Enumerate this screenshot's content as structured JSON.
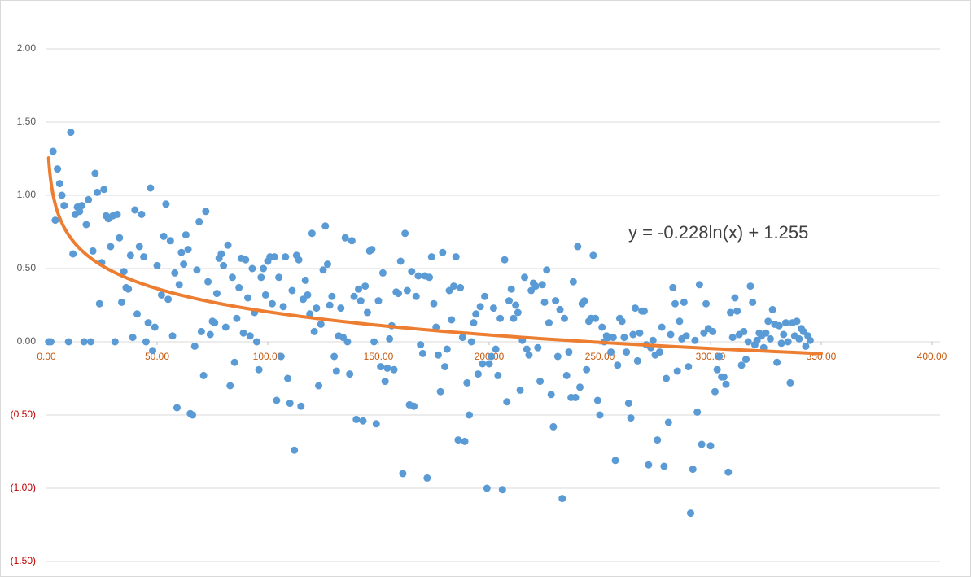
{
  "chart_data": {
    "type": "scatter",
    "color": "#5b9bd5",
    "xlim": [
      0,
      400
    ],
    "ylim": [
      -1.5,
      2.0
    ],
    "xticks": [
      {
        "value": 0,
        "label": "0.00"
      },
      {
        "value": 50,
        "label": "50.00"
      },
      {
        "value": 100,
        "label": "100.00"
      },
      {
        "value": 150,
        "label": "150.00"
      },
      {
        "value": 200,
        "label": "200.00"
      },
      {
        "value": 250,
        "label": "250.00"
      },
      {
        "value": 300,
        "label": "300.00"
      },
      {
        "value": 350,
        "label": "350.00"
      },
      {
        "value": 400,
        "label": "400.00"
      }
    ],
    "yticks": [
      {
        "value": 2,
        "label": "2.00"
      },
      {
        "value": 1.5,
        "label": "1.50"
      },
      {
        "value": 1,
        "label": "1.00"
      },
      {
        "value": 0.5,
        "label": "0.50"
      },
      {
        "value": 0,
        "label": "0.00"
      },
      {
        "value": -0.5,
        "label": "(0.50)"
      },
      {
        "value": -1,
        "label": "(1.00)"
      },
      {
        "value": -1.5,
        "label": "(1.50)"
      }
    ],
    "grid": true,
    "xtick_color": "#c55a11",
    "ytick_color": "#595959",
    "ytick_negative_color": "#c00000",
    "trendline": {
      "type": "log",
      "a": -0.228,
      "b": 1.255,
      "xrange": [
        1,
        350
      ],
      "color": "#ed7d31",
      "label": "y = -0.228ln(x) + 1.255"
    },
    "x": [
      1,
      2,
      3,
      4,
      5,
      6,
      7,
      8,
      10,
      11,
      12,
      13,
      14,
      15,
      16,
      17,
      18,
      19,
      20,
      21,
      22,
      23,
      24,
      25,
      26,
      27,
      28,
      29,
      30,
      31,
      32,
      33,
      34,
      35,
      36,
      37,
      38,
      39,
      40,
      41,
      42,
      43,
      44,
      45,
      46,
      47,
      48,
      49,
      50,
      52,
      53,
      54,
      55,
      56,
      57,
      58,
      59,
      60,
      61,
      62,
      63,
      64,
      65,
      66,
      67,
      68,
      69,
      70,
      71,
      72,
      73,
      74,
      75,
      76,
      77,
      78,
      79,
      80,
      81,
      82,
      83,
      84,
      85,
      86,
      87,
      88,
      89,
      90,
      91,
      92,
      93,
      94,
      95,
      96,
      97,
      98,
      99,
      100,
      101,
      102,
      103,
      104,
      105,
      106,
      107,
      108,
      109,
      110,
      111,
      112,
      113,
      114,
      115,
      116,
      117,
      118,
      119,
      120,
      121,
      122,
      123,
      124,
      125,
      126,
      127,
      128,
      129,
      130,
      131,
      132,
      133,
      134,
      135,
      136,
      137,
      138,
      139,
      140,
      141,
      142,
      143,
      144,
      145,
      146,
      147,
      148,
      149,
      150,
      151,
      152,
      153,
      154,
      155,
      156,
      157,
      158,
      159,
      160,
      161,
      162,
      163,
      164,
      165,
      166,
      167,
      168,
      169,
      170,
      171,
      172,
      173,
      174,
      175,
      176,
      177,
      178,
      179,
      180,
      181,
      182,
      183,
      184,
      185,
      186,
      187,
      188,
      189,
      190,
      191,
      192,
      193,
      194,
      195,
      196,
      197,
      198,
      199,
      200,
      201,
      202,
      203,
      204,
      205,
      206,
      207,
      208,
      209,
      210,
      211,
      212,
      213,
      214,
      215,
      216,
      217,
      218,
      219,
      220,
      221,
      222,
      223,
      224,
      225,
      226,
      227,
      228,
      229,
      230,
      231,
      232,
      233,
      234,
      235,
      236,
      237,
      238,
      239,
      240,
      241,
      242,
      243,
      244,
      245,
      246,
      247,
      248,
      249,
      250,
      251,
      252,
      253,
      254,
      255,
      256,
      257,
      258,
      259,
      260,
      261,
      262,
      263,
      264,
      265,
      266,
      267,
      268,
      269,
      270,
      271,
      272,
      273,
      274,
      275,
      276,
      277,
      278,
      279,
      280,
      281,
      282,
      283,
      284,
      285,
      286,
      287,
      288,
      289,
      290,
      291,
      292,
      293,
      294,
      295,
      296,
      297,
      298,
      299,
      300,
      301,
      302,
      303,
      304,
      305,
      306,
      307,
      308,
      309,
      310,
      311,
      312,
      313,
      314,
      315,
      316,
      317,
      318,
      319,
      320,
      321,
      322,
      323,
      324,
      325,
      326,
      327,
      328,
      329,
      330,
      331,
      332,
      333,
      334,
      335,
      336,
      337,
      338,
      339,
      340,
      341,
      342,
      343,
      344,
      345
    ],
    "values": [
      0,
      0,
      1.3,
      0.83,
      1.18,
      1.08,
      1.0,
      0.93,
      0,
      1.43,
      0.6,
      0.87,
      0.92,
      0.89,
      0.93,
      0,
      0.8,
      0.97,
      0,
      0.62,
      1.15,
      1.02,
      0.26,
      0.54,
      1.04,
      0.86,
      0.84,
      0.65,
      0.86,
      0,
      0.87,
      0.71,
      0.27,
      0.48,
      0.37,
      0.36,
      0.59,
      0.03,
      0.9,
      0.19,
      0.65,
      0.87,
      0.58,
      0,
      0.13,
      1.05,
      -0.06,
      0.1,
      0.52,
      0.32,
      0.72,
      0.94,
      0.29,
      0.69,
      0.04,
      0.47,
      -0.45,
      0.39,
      0.61,
      0.53,
      0.73,
      0.63,
      -0.49,
      -0.5,
      -0.03,
      0.49,
      0.82,
      0.07,
      -0.23,
      0.89,
      0.41,
      0.05,
      0.14,
      0.13,
      0.33,
      0.57,
      0.6,
      0.52,
      0.1,
      0.66,
      -0.3,
      0.44,
      -0.14,
      0.16,
      0.37,
      0.57,
      0.06,
      0.56,
      0.3,
      0.04,
      0.5,
      0.2,
      0,
      -0.19,
      0.44,
      0.5,
      0.32,
      0.55,
      0.58,
      0.26,
      0.58,
      -0.4,
      0.44,
      -0.1,
      0.24,
      0.58,
      -0.25,
      -0.42,
      0.35,
      -0.74,
      0.59,
      0.56,
      -0.44,
      0.29,
      0.42,
      0.32,
      0.19,
      0.74,
      0.07,
      0.23,
      -0.3,
      0.12,
      0.49,
      0.79,
      0.53,
      0.25,
      0.31,
      -0.1,
      -0.2,
      0.04,
      0.23,
      0.03,
      0.71,
      0,
      -0.22,
      0.69,
      0.31,
      -0.53,
      0.36,
      0.28,
      -0.54,
      0.38,
      0.2,
      0.62,
      0.63,
      0,
      -0.56,
      0.28,
      -0.17,
      0.47,
      -0.27,
      -0.18,
      0.02,
      0.11,
      -0.19,
      0.34,
      0.33,
      0.55,
      -0.9,
      0.74,
      0.35,
      -0.43,
      0.48,
      -0.44,
      0.31,
      0.45,
      -0.02,
      -0.08,
      0.45,
      -0.93,
      0.44,
      0.58,
      0.26,
      0.1,
      -0.09,
      -0.34,
      0.61,
      -0.17,
      -0.05,
      0.35,
      0.15,
      0.38,
      0.58,
      -0.67,
      0.37,
      0.03,
      -0.68,
      -0.28,
      -0.5,
      0,
      0.13,
      0.19,
      -0.22,
      0.24,
      -0.15,
      0.31,
      -1.0,
      -0.15,
      -0.1,
      0.23,
      -0.05,
      -0.23,
      0.16,
      -1.01,
      0.56,
      -0.41,
      0.28,
      0.36,
      0.16,
      0.25,
      0.2,
      -0.33,
      0.01,
      0.44,
      -0.05,
      -0.09,
      0.35,
      0.4,
      0.38,
      -0.04,
      -0.27,
      0.39,
      0.27,
      0.49,
      0.13,
      -0.36,
      -0.58,
      0.28,
      -0.1,
      0.22,
      -1.07,
      0.16,
      -0.23,
      -0.07,
      -0.38,
      0.41,
      -0.38,
      0.65,
      -0.31,
      0.26,
      0.28,
      -0.19,
      0.14,
      0.16,
      0.59,
      0.16,
      -0.4,
      -0.5,
      0.1,
      0,
      0.04,
      0.03,
      -0.07,
      0.03,
      -0.81,
      -0.16,
      0.16,
      0.14,
      0.03,
      -0.07,
      -0.42,
      -0.52,
      0.05,
      0.23,
      -0.13,
      0.06,
      0.21,
      0.21,
      -0.02,
      -0.84,
      -0.04,
      0.01,
      -0.09,
      -0.67,
      -0.07,
      0.1,
      -0.85,
      -0.25,
      -0.55,
      0.05,
      0.37,
      0.26,
      -0.2,
      0.14,
      0.02,
      0.27,
      0.04,
      -0.17,
      -1.17,
      -0.87,
      0.01,
      -0.48,
      0.39,
      -0.7,
      0.06,
      0.26,
      0.09,
      -0.71,
      0.07,
      -0.34,
      -0.19,
      -0.1,
      -0.24,
      -0.24,
      -0.29,
      -0.89,
      0.2,
      0.03,
      0.3,
      0.21,
      0.05,
      -0.16,
      0.07,
      -0.12,
      0,
      0.38,
      0.27,
      -0.02,
      0.01,
      0.06,
      0.04,
      -0.04,
      0.06,
      0.14,
      0.02,
      0.22,
      0.12,
      -0.14,
      0.11,
      -0.01,
      0.05,
      0.13,
      0,
      -0.28,
      0.13,
      0.04,
      0.14,
      0.02,
      0.09,
      0.07,
      -0.03,
      0.04,
      0.01
    ]
  }
}
